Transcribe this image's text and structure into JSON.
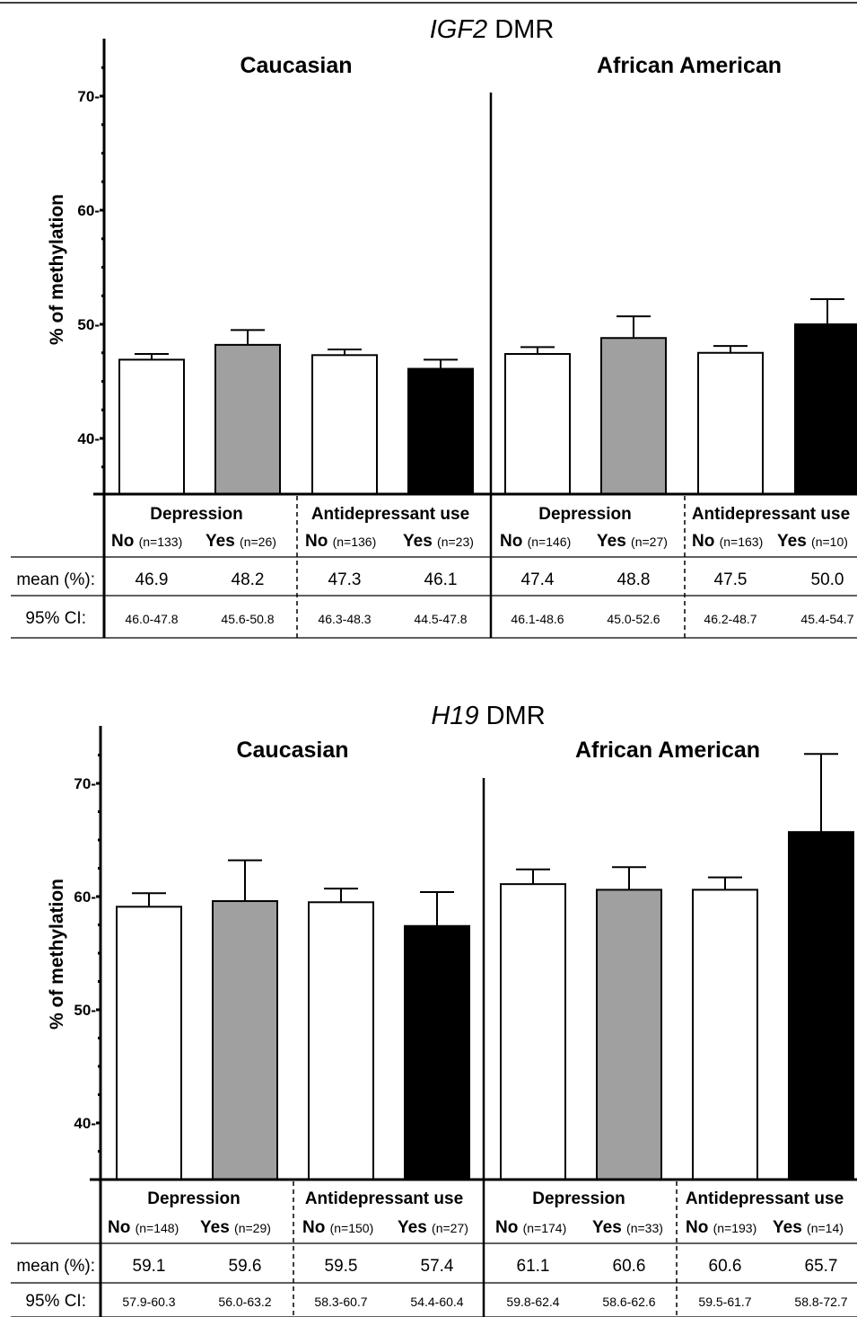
{
  "colors": {
    "white_bar": "#ffffff",
    "gray_bar": "#a0a0a0",
    "black_bar": "#000000",
    "stroke": "#000000"
  },
  "chart_data": [
    {
      "type": "bar",
      "title_italic": "IGF2",
      "title_rest": " DMR",
      "ylabel": "% of methylation",
      "ylim": [
        35,
        75
      ],
      "yticks": [
        40,
        50,
        60,
        70
      ],
      "tick_labels": [
        "40-",
        "50-",
        "60-",
        "70-"
      ],
      "row_labels": {
        "mean": "mean (%):",
        "ci": "95% CI:"
      },
      "groups": [
        {
          "name": "Caucasian",
          "subgroups": [
            {
              "name": "Depression",
              "bars": [
                {
                  "label": "No",
                  "n": "(n=133)",
                  "mean": 46.9,
                  "err": 0.5,
                  "ci": "46.0-47.8",
                  "fill": "white"
                },
                {
                  "label": "Yes",
                  "n": "(n=26)",
                  "mean": 48.2,
                  "err": 1.3,
                  "ci": "45.6-50.8",
                  "fill": "gray"
                }
              ]
            },
            {
              "name": "Antidepressant use",
              "bars": [
                {
                  "label": "No",
                  "n": "(n=136)",
                  "mean": 47.3,
                  "err": 0.5,
                  "ci": "46.3-48.3",
                  "fill": "white"
                },
                {
                  "label": "Yes",
                  "n": "(n=23)",
                  "mean": 46.1,
                  "err": 0.8,
                  "ci": "44.5-47.8",
                  "fill": "black"
                }
              ]
            }
          ]
        },
        {
          "name": "African American",
          "subgroups": [
            {
              "name": "Depression",
              "bars": [
                {
                  "label": "No",
                  "n": "(n=146)",
                  "mean": 47.4,
                  "err": 0.6,
                  "ci": "46.1-48.6",
                  "fill": "white"
                },
                {
                  "label": "Yes",
                  "n": "(n=27)",
                  "mean": 48.8,
                  "err": 1.9,
                  "ci": "45.0-52.6",
                  "fill": "gray"
                }
              ]
            },
            {
              "name": "Antidepressant use",
              "bars": [
                {
                  "label": "No",
                  "n": "(n=163)",
                  "mean": 47.5,
                  "err": 0.6,
                  "ci": "46.2-48.7",
                  "fill": "white"
                },
                {
                  "label": "Yes",
                  "n": "(n=10)",
                  "mean": 50.0,
                  "err": 2.2,
                  "ci": "45.4-54.7",
                  "fill": "black"
                }
              ]
            }
          ]
        }
      ]
    },
    {
      "type": "bar",
      "title_italic": "H19",
      "title_rest": " DMR",
      "ylabel": "% of methylation",
      "ylim": [
        35,
        75
      ],
      "yticks": [
        40,
        50,
        60,
        70
      ],
      "tick_labels": [
        "40-",
        "50-",
        "60-",
        "70-"
      ],
      "row_labels": {
        "mean": "mean (%):",
        "ci": "95% CI:"
      },
      "groups": [
        {
          "name": "Caucasian",
          "subgroups": [
            {
              "name": "Depression",
              "bars": [
                {
                  "label": "No",
                  "n": "(n=148)",
                  "mean": 59.1,
                  "err": 1.2,
                  "ci": "57.9-60.3",
                  "fill": "white"
                },
                {
                  "label": "Yes",
                  "n": "(n=29)",
                  "mean": 59.6,
                  "err": 3.6,
                  "ci": "56.0-63.2",
                  "fill": "gray"
                }
              ]
            },
            {
              "name": "Antidepressant use",
              "bars": [
                {
                  "label": "No",
                  "n": "(n=150)",
                  "mean": 59.5,
                  "err": 1.2,
                  "ci": "58.3-60.7",
                  "fill": "white"
                },
                {
                  "label": "Yes",
                  "n": "(n=27)",
                  "mean": 57.4,
                  "err": 3.0,
                  "ci": "54.4-60.4",
                  "fill": "black"
                }
              ]
            }
          ]
        },
        {
          "name": "African American",
          "subgroups": [
            {
              "name": "Depression",
              "bars": [
                {
                  "label": "No",
                  "n": "(n=174)",
                  "mean": 61.1,
                  "err": 1.3,
                  "ci": "59.8-62.4",
                  "fill": "white"
                },
                {
                  "label": "Yes",
                  "n": "(n=33)",
                  "mean": 60.6,
                  "err": 2.0,
                  "ci": "58.6-62.6",
                  "fill": "gray"
                }
              ]
            },
            {
              "name": "Antidepressant use",
              "bars": [
                {
                  "label": "No",
                  "n": "(n=193)",
                  "mean": 60.6,
                  "err": 1.1,
                  "ci": "59.5-61.7",
                  "fill": "white"
                },
                {
                  "label": "Yes",
                  "n": "(n=14)",
                  "mean": 65.7,
                  "err": 6.9,
                  "ci": "58.8-72.7",
                  "fill": "black"
                }
              ]
            }
          ]
        }
      ]
    }
  ]
}
